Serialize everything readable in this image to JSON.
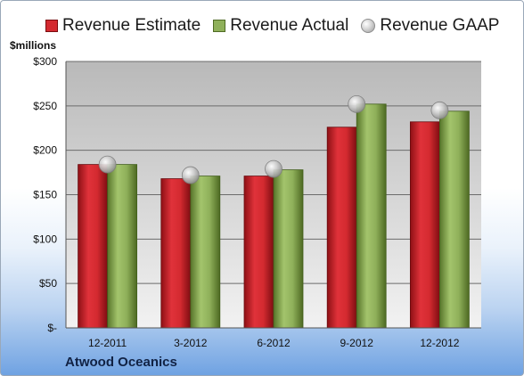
{
  "chart_data": {
    "type": "bar",
    "categories": [
      "12-2011",
      "3-2012",
      "6-2012",
      "9-2012",
      "12-2012"
    ],
    "series": [
      {
        "name": "Revenue Estimate",
        "kind": "bar",
        "color": "#d42a30",
        "values": [
          184,
          168,
          171,
          226,
          232
        ]
      },
      {
        "name": "Revenue Actual",
        "kind": "bar",
        "color": "#8fb05a",
        "values": [
          184,
          171,
          178,
          252,
          244
        ]
      },
      {
        "name": "Revenue GAAP",
        "kind": "marker",
        "color": "#c8c8c8",
        "values": [
          184,
          172,
          179,
          252,
          245
        ]
      }
    ],
    "ylabel": "$millions",
    "ylim": [
      0,
      300
    ],
    "yticks": [
      0,
      50,
      100,
      150,
      200,
      250,
      300
    ],
    "ytick_labels": [
      "$-",
      "$50",
      "$100",
      "$150",
      "$200",
      "$250",
      "$300"
    ],
    "grid": true,
    "legend_position": "top"
  },
  "footer": {
    "company": "Atwood Oceanics"
  }
}
